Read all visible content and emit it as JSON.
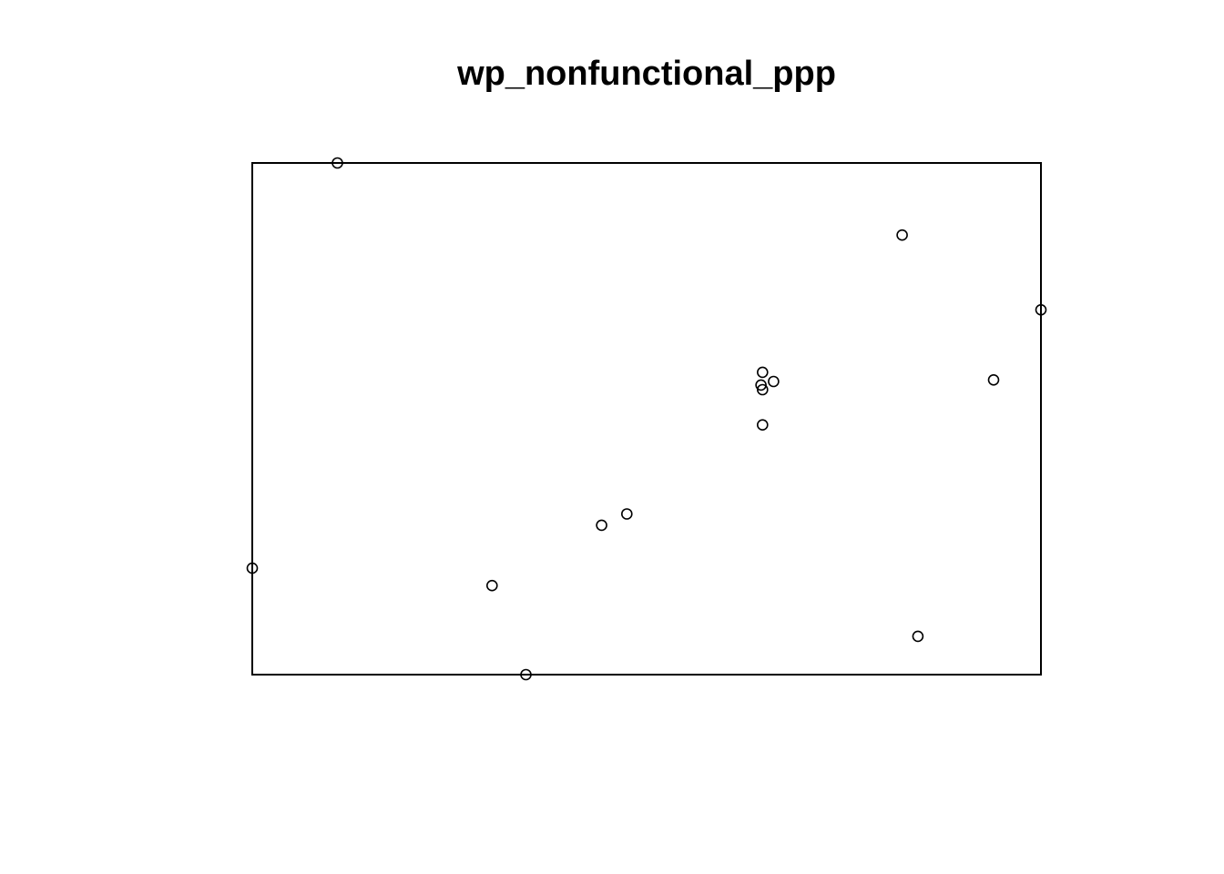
{
  "chart_data": {
    "type": "scatter",
    "title": "wp_nonfunctional_ppp",
    "xlabel": "",
    "ylabel": "",
    "axes_shown": false,
    "grid": false,
    "legend": "none",
    "window": {
      "xlim": [
        0,
        1
      ],
      "ylim": [
        0,
        1
      ]
    },
    "marker": "open-circle",
    "marker_color": "#000000",
    "points": [
      {
        "x": 0.108,
        "y": 1.0
      },
      {
        "x": 0.824,
        "y": 0.859
      },
      {
        "x": 1.0,
        "y": 0.713
      },
      {
        "x": 0.647,
        "y": 0.591
      },
      {
        "x": 0.94,
        "y": 0.576
      },
      {
        "x": 0.661,
        "y": 0.573
      },
      {
        "x": 0.645,
        "y": 0.566
      },
      {
        "x": 0.647,
        "y": 0.557
      },
      {
        "x": 0.647,
        "y": 0.488
      },
      {
        "x": 0.475,
        "y": 0.314
      },
      {
        "x": 0.443,
        "y": 0.292
      },
      {
        "x": 0.0,
        "y": 0.208
      },
      {
        "x": 0.304,
        "y": 0.174
      },
      {
        "x": 0.844,
        "y": 0.075
      },
      {
        "x": 0.347,
        "y": 0.0
      }
    ]
  }
}
